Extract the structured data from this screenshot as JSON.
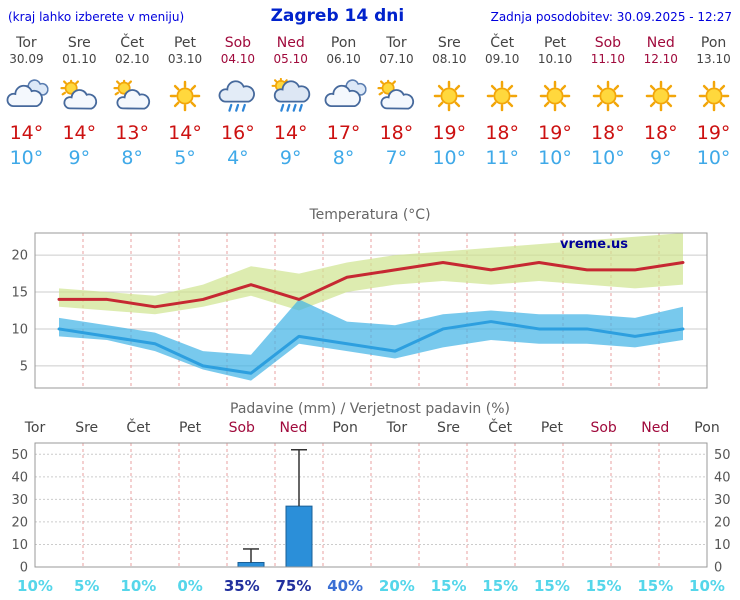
{
  "header": {
    "menu_note": "(kraj lahko izberete v meniju)",
    "title": "Zagreb 14 dni",
    "last_update": "Zadnja posodobitev: 30.09.2025 - 12:27"
  },
  "watermark": "vreme.us",
  "colors": {
    "accent_blue": "#0000dd",
    "weekday_gray": "#444444",
    "weekend_red": "#a00a3c",
    "tmax_red": "#cc1111",
    "tmin_blue": "#3fa9e8",
    "prob_low": "#55d6ea",
    "prob_mid": "#3b6fd4",
    "prob_high": "#22309e",
    "bar_blue": "#2b8fd9",
    "grid_gray": "#cccccc",
    "grid_dashed_red": "#eaa0a0"
  },
  "days": [
    {
      "name": "Tor",
      "date": "30.09",
      "weekend": false,
      "icon": "cloudy",
      "tmax": "14°",
      "tmin": "10°",
      "prob": "10%",
      "prob_level": "low"
    },
    {
      "name": "Sre",
      "date": "01.10",
      "weekend": false,
      "icon": "sun-cloud",
      "tmax": "14°",
      "tmin": "9°",
      "prob": "5%",
      "prob_level": "low"
    },
    {
      "name": "Čet",
      "date": "02.10",
      "weekend": false,
      "icon": "sun-cloud",
      "tmax": "13°",
      "tmin": "8°",
      "prob": "10%",
      "prob_level": "low"
    },
    {
      "name": "Pet",
      "date": "03.10",
      "weekend": false,
      "icon": "sunny",
      "tmax": "14°",
      "tmin": "5°",
      "prob": "0%",
      "prob_level": "low"
    },
    {
      "name": "Sob",
      "date": "04.10",
      "weekend": true,
      "icon": "rain",
      "tmax": "16°",
      "tmin": "4°",
      "prob": "35%",
      "prob_level": "high"
    },
    {
      "name": "Ned",
      "date": "05.10",
      "weekend": true,
      "icon": "rain-sun",
      "tmax": "14°",
      "tmin": "9°",
      "prob": "75%",
      "prob_level": "high"
    },
    {
      "name": "Pon",
      "date": "06.10",
      "weekend": false,
      "icon": "cloudy",
      "tmax": "17°",
      "tmin": "8°",
      "prob": "40%",
      "prob_level": "mid"
    },
    {
      "name": "Tor",
      "date": "07.10",
      "weekend": false,
      "icon": "sun-cloud",
      "tmax": "18°",
      "tmin": "7°",
      "prob": "20%",
      "prob_level": "low"
    },
    {
      "name": "Sre",
      "date": "08.10",
      "weekend": false,
      "icon": "sunny",
      "tmax": "19°",
      "tmin": "10°",
      "prob": "15%",
      "prob_level": "low"
    },
    {
      "name": "Čet",
      "date": "09.10",
      "weekend": false,
      "icon": "sunny",
      "tmax": "18°",
      "tmin": "11°",
      "prob": "15%",
      "prob_level": "low"
    },
    {
      "name": "Pet",
      "date": "10.10",
      "weekend": false,
      "icon": "sunny",
      "tmax": "19°",
      "tmin": "10°",
      "prob": "15%",
      "prob_level": "low"
    },
    {
      "name": "Sob",
      "date": "11.10",
      "weekend": true,
      "icon": "sunny",
      "tmax": "18°",
      "tmin": "10°",
      "prob": "15%",
      "prob_level": "low"
    },
    {
      "name": "Ned",
      "date": "12.10",
      "weekend": true,
      "icon": "sunny",
      "tmax": "18°",
      "tmin": "9°",
      "prob": "15%",
      "prob_level": "low"
    },
    {
      "name": "Pon",
      "date": "13.10",
      "weekend": false,
      "icon": "sunny",
      "tmax": "19°",
      "tmin": "10°",
      "prob": "10%",
      "prob_level": "low"
    }
  ],
  "chart_data": [
    {
      "type": "line",
      "title": "Temperatura (°C)",
      "categories": [
        "Tor 30.09",
        "Sre 01.10",
        "Čet 02.10",
        "Pet 03.10",
        "Sob 04.10",
        "Ned 05.10",
        "Pon 06.10",
        "Tor 07.10",
        "Sre 08.10",
        "Čet 09.10",
        "Pet 10.10",
        "Sob 11.10",
        "Ned 12.10",
        "Pon 13.10"
      ],
      "ylim": [
        2,
        23
      ],
      "yticks": [
        5,
        10,
        15,
        20
      ],
      "grid": true,
      "series": [
        {
          "name": "max-temperature",
          "color": "#c62832",
          "values": [
            14,
            14,
            13,
            14,
            16,
            14,
            17,
            18,
            19,
            18,
            19,
            18,
            18,
            19
          ]
        },
        {
          "name": "min-temperature",
          "color": "#2d9fdf",
          "values": [
            10,
            9,
            8,
            5,
            4,
            9,
            8,
            7,
            10,
            11,
            10,
            10,
            9,
            10
          ]
        }
      ],
      "bands": [
        {
          "name": "max-temp-range",
          "color": "#cfe48e",
          "hi": [
            15.5,
            15,
            14.5,
            16,
            18.5,
            17.5,
            19,
            20,
            20.5,
            21,
            21.5,
            22,
            22.5,
            23
          ],
          "lo": [
            13,
            12.5,
            12,
            13,
            14.5,
            12.5,
            15,
            16,
            16.5,
            16,
            16.5,
            16,
            15.5,
            16
          ]
        },
        {
          "name": "min-temp-range",
          "color": "#3fb2e6",
          "hi": [
            11.5,
            10.5,
            9.5,
            7,
            6.5,
            14,
            11,
            10.5,
            12,
            12.5,
            12,
            12,
            11.5,
            13
          ],
          "lo": [
            9,
            8.5,
            7,
            4.5,
            3,
            8,
            7,
            6,
            7.5,
            8.5,
            8,
            8,
            7.5,
            8.5
          ]
        }
      ]
    },
    {
      "type": "bar",
      "title": "Padavine (mm) / Verjetnost padavin (%)",
      "categories": [
        "Tor",
        "Sre",
        "Čet",
        "Pet",
        "Sob",
        "Ned",
        "Pon",
        "Tor",
        "Sre",
        "Čet",
        "Pet",
        "Sob",
        "Ned",
        "Pon"
      ],
      "weekend": [
        false,
        false,
        false,
        false,
        true,
        true,
        false,
        false,
        false,
        false,
        false,
        true,
        true,
        false
      ],
      "ylim": [
        0,
        55
      ],
      "yticks": [
        0,
        10,
        20,
        30,
        40,
        50
      ],
      "values": [
        0,
        0,
        0,
        0,
        2,
        27,
        0,
        0,
        0,
        0,
        0,
        0,
        0,
        0
      ],
      "whisker_hi": [
        0,
        0,
        0,
        0,
        8,
        52,
        0,
        0,
        0,
        0,
        0,
        0,
        0,
        0
      ],
      "probabilities": [
        "10%",
        "5%",
        "10%",
        "0%",
        "35%",
        "75%",
        "40%",
        "20%",
        "15%",
        "15%",
        "15%",
        "15%",
        "15%",
        "10%"
      ]
    }
  ]
}
